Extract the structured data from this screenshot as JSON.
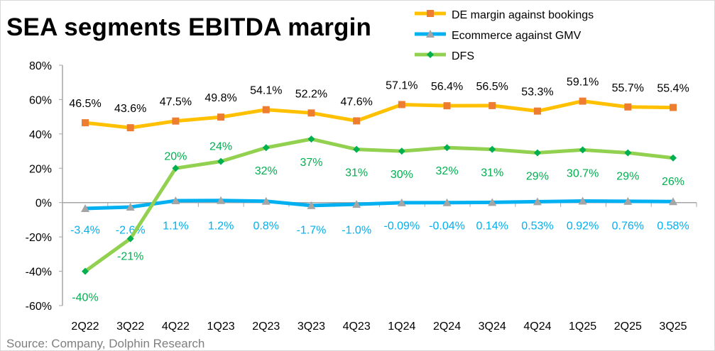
{
  "chart_data": {
    "type": "line",
    "title": "SEA segments EBITDA margin",
    "source": "Source: Company, Dolphin Research",
    "categories": [
      "2Q22",
      "3Q22",
      "4Q22",
      "1Q23",
      "2Q23",
      "3Q23",
      "4Q23",
      "1Q24",
      "2Q24",
      "3Q24",
      "4Q24",
      "1Q25",
      "2Q25",
      "3Q25"
    ],
    "ylim": [
      -60,
      80
    ],
    "yticks": [
      -60,
      -40,
      -20,
      0,
      20,
      40,
      60,
      80
    ],
    "ytick_labels": [
      "-60%",
      "-40%",
      "-20%",
      "0%",
      "20%",
      "40%",
      "60%",
      "80%"
    ],
    "grid": false,
    "legend_position": "top-right",
    "series": [
      {
        "name": "DE margin against bookings",
        "color": "#FFC000",
        "marker_color": "#ED7D31",
        "marker": "square",
        "label_color": "#000000",
        "values": [
          46.5,
          43.6,
          47.5,
          49.8,
          54.1,
          52.2,
          47.6,
          57.1,
          56.4,
          56.5,
          53.3,
          59.1,
          55.7,
          55.4
        ],
        "labels": [
          "46.5%",
          "43.6%",
          "47.5%",
          "49.8%",
          "54.1%",
          "52.2%",
          "47.6%",
          "57.1%",
          "56.4%",
          "56.5%",
          "53.3%",
          "59.1%",
          "55.7%",
          "55.4%"
        ]
      },
      {
        "name": "Ecommerce against GMV",
        "color": "#00B0F0",
        "marker_color": "#A5A5A5",
        "marker": "triangle",
        "label_color": "#00B0F0",
        "values": [
          -3.4,
          -2.6,
          1.1,
          1.2,
          0.8,
          -1.7,
          -1.0,
          -0.09,
          -0.04,
          0.14,
          0.53,
          0.92,
          0.76,
          0.58
        ],
        "labels": [
          "-3.4%",
          "-2.6%",
          "1.1%",
          "1.2%",
          "0.8%",
          "-1.7%",
          "-1.0%",
          "-0.09%",
          "-0.04%",
          "0.14%",
          "0.53%",
          "0.92%",
          "0.76%",
          "0.58%"
        ]
      },
      {
        "name": "DFS",
        "color": "#92D050",
        "marker_color": "#00B050",
        "marker": "diamond",
        "label_color": "#00B050",
        "values": [
          -40,
          -21,
          20,
          24,
          32,
          37,
          31,
          30,
          32,
          31,
          29,
          30.7,
          29,
          26
        ],
        "labels": [
          "-40%",
          "-21%",
          "20%",
          "24%",
          "32%",
          "37%",
          "31%",
          "30%",
          "32%",
          "31%",
          "29%",
          "30.7%",
          "29%",
          "26%"
        ]
      }
    ]
  }
}
